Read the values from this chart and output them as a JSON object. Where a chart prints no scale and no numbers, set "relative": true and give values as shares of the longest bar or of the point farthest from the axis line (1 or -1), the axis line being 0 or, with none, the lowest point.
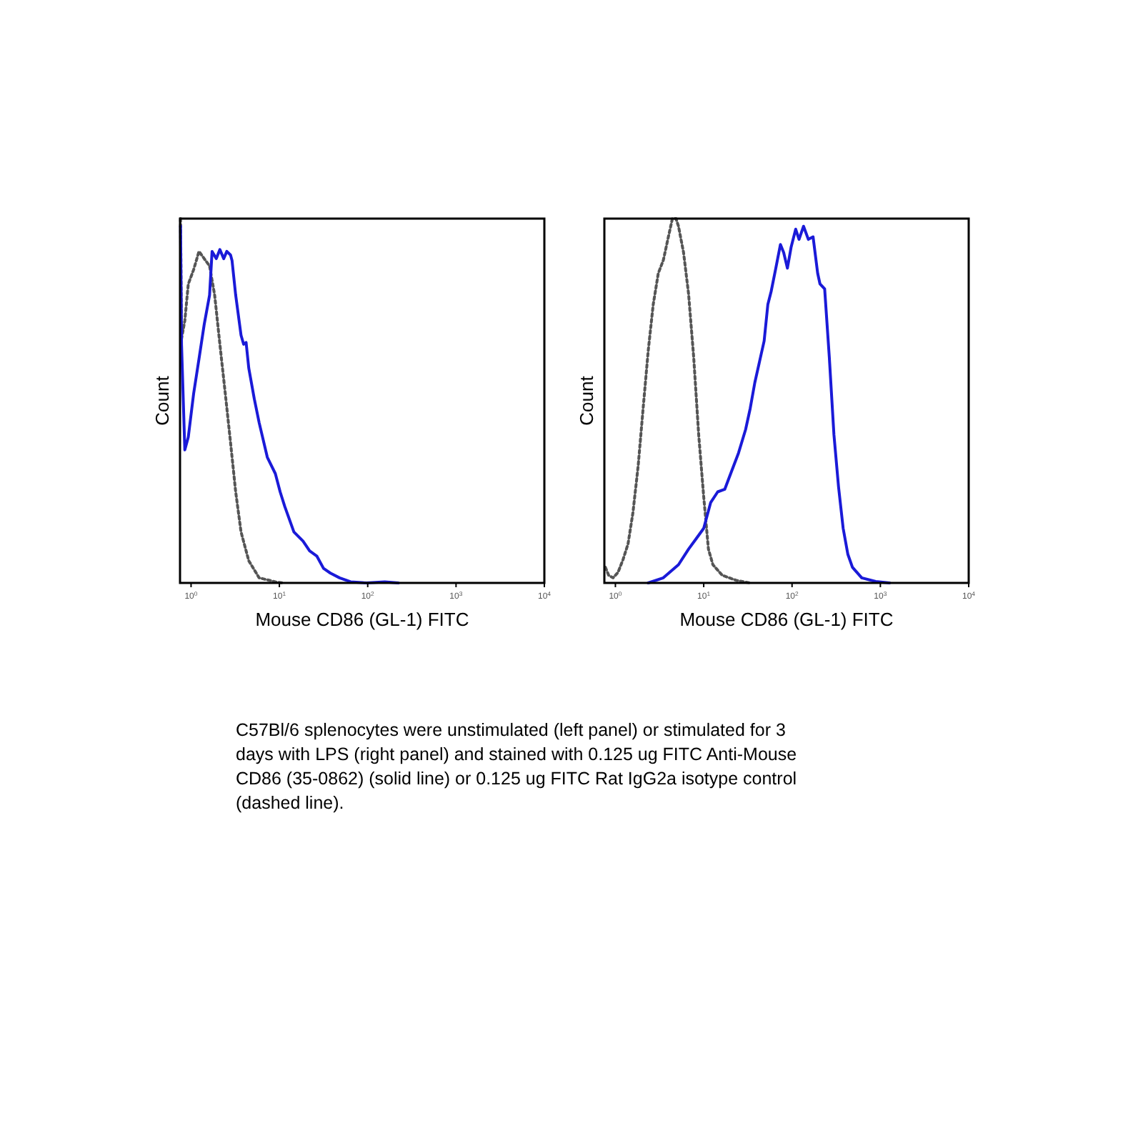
{
  "chart_data": [
    {
      "type": "line",
      "relative": true,
      "xlabel": "Mouse CD86 (GL-1) FITC",
      "ylabel": "Count",
      "log": "x",
      "xlim": [
        0.75,
        10000
      ],
      "xticks": [
        {
          "value": 1,
          "label": "10$^{0}$"
        },
        {
          "value": 10,
          "label": "10$^{1}$"
        },
        {
          "value": 100,
          "label": "10$^{2}$"
        },
        {
          "value": 1000,
          "label": "10$^{3}$"
        },
        {
          "value": 10000,
          "label": "10$^{4}$"
        }
      ],
      "grid": false,
      "annotations": [
        "C57Bl/6 splenocytes were unstimulated (left panel) or stimulated for 3 days with LPS (right panel) and stained with 0.125 ug FITC Anti-Mouse CD86 (35-0862) (solid line) or 0.125 ug FITC Rat IgG2a isotype control (dashed line)."
      ],
      "series": [
        {
          "color": "#555555",
          "line_style": "dotted",
          "x": [
            0.76,
            0.78,
            0.85,
            0.93,
            1.07,
            1.23,
            1.41,
            1.62,
            1.85,
            2.12,
            2.44,
            2.8,
            3.2,
            3.68,
            4.5,
            5.9,
            9.0,
            10.9
          ],
          "values": [
            1.0,
            0.67,
            0.72,
            0.82,
            0.86,
            0.91,
            0.89,
            0.87,
            0.79,
            0.655,
            0.52,
            0.385,
            0.25,
            0.14,
            0.061,
            0.014,
            0.003,
            0
          ]
        },
        {
          "color": "#1a1ad8",
          "line_style": "solid",
          "x": [
            0.76,
            0.78,
            0.85,
            0.93,
            1.07,
            1.23,
            1.41,
            1.62,
            1.73,
            1.93,
            2.12,
            2.34,
            2.54,
            2.8,
            2.91,
            3.2,
            3.68,
            3.94,
            4.2,
            4.5,
            5.2,
            5.9,
            7.3,
            9.0,
            10.2,
            11.5,
            14.6,
            18.5,
            22,
            26.5,
            31.6,
            37.8,
            48,
            64,
            97,
            156,
            222
          ],
          "values": [
            0.98,
            0.655,
            0.365,
            0.4,
            0.52,
            0.615,
            0.71,
            0.79,
            0.91,
            0.89,
            0.915,
            0.89,
            0.91,
            0.9,
            0.885,
            0.79,
            0.68,
            0.655,
            0.66,
            0.59,
            0.505,
            0.44,
            0.345,
            0.3,
            0.25,
            0.21,
            0.14,
            0.115,
            0.088,
            0.074,
            0.04,
            0.027,
            0.014,
            0.003,
            0,
            0.003,
            0
          ]
        }
      ]
    },
    {
      "type": "line",
      "relative": true,
      "xlabel": "Mouse CD86 (GL-1) FITC",
      "ylabel": "Count",
      "log": "x",
      "xlim": [
        0.75,
        10000
      ],
      "xticks": [
        {
          "value": 1,
          "label": "10$^{0}$"
        },
        {
          "value": 10,
          "label": "10$^{1}$"
        },
        {
          "value": 100,
          "label": "10$^{2}$"
        },
        {
          "value": 1000,
          "label": "10$^{3}$"
        },
        {
          "value": 10000,
          "label": "10$^{4}$"
        }
      ],
      "grid": false,
      "series": [
        {
          "color": "#555555",
          "line_style": "dotted",
          "x": [
            0.77,
            0.84,
            0.94,
            1.07,
            1.22,
            1.39,
            1.58,
            1.81,
            2.06,
            2.35,
            2.68,
            3.06,
            3.49,
            3.98,
            4.42,
            4.85,
            5.18,
            5.91,
            6.74,
            7.69,
            8.77,
            10,
            11.3,
            12.7,
            16.2,
            23.4,
            33.6
          ],
          "values": [
            0.043,
            0.021,
            0.014,
            0.029,
            0.064,
            0.107,
            0.193,
            0.321,
            0.479,
            0.636,
            0.764,
            0.85,
            0.886,
            0.95,
            1.0,
            1.0,
            0.979,
            0.907,
            0.793,
            0.621,
            0.407,
            0.236,
            0.093,
            0.05,
            0.021,
            0.007,
            0
          ]
        },
        {
          "color": "#1a1ad8",
          "line_style": "solid",
          "x": [
            2.35,
            3.49,
            5.18,
            6.74,
            8.2,
            10,
            12.0,
            14.4,
            17.3,
            20.7,
            24.8,
            29.8,
            33.6,
            37.9,
            42.8,
            48.3,
            53.2,
            58,
            65.5,
            73.9,
            80.4,
            88.6,
            97.5,
            110,
            120,
            135,
            153,
            173,
            195,
            207,
            234,
            264,
            298,
            336,
            379,
            428,
            483,
            615,
            886,
            1270
          ],
          "values": [
            0,
            0.014,
            0.05,
            0.093,
            0.121,
            0.15,
            0.221,
            0.25,
            0.257,
            0.307,
            0.357,
            0.421,
            0.479,
            0.55,
            0.607,
            0.664,
            0.764,
            0.8,
            0.864,
            0.929,
            0.907,
            0.864,
            0.921,
            0.971,
            0.943,
            0.979,
            0.943,
            0.95,
            0.85,
            0.821,
            0.807,
            0.621,
            0.407,
            0.264,
            0.15,
            0.079,
            0.043,
            0.014,
            0.004,
            0
          ]
        }
      ]
    }
  ]
}
